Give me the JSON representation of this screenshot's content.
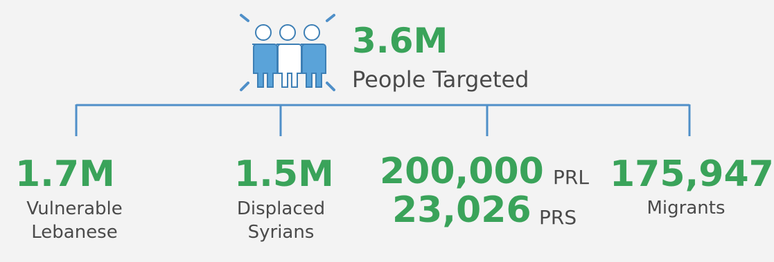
{
  "colors": {
    "accent_green": "#3aa35a",
    "line_blue": "#4f8fc8",
    "icon_blue": "#5aa3d9",
    "text_gray": "#4a4a4a",
    "background": "#f3f3f3"
  },
  "icon": "people-group-icon",
  "top": {
    "value": "3.6M",
    "label": "People Targeted"
  },
  "groups": [
    {
      "value": "1.7M",
      "label_line1": "Vulnerable",
      "label_line2": "Lebanese"
    },
    {
      "value": "1.5M",
      "label_line1": "Displaced",
      "label_line2": "Syrians"
    },
    {
      "value_a": "200,000",
      "suffix_a": "PRL",
      "value_b": "23,026",
      "suffix_b": "PRS"
    },
    {
      "value": "175,947",
      "label": "Migrants"
    }
  ]
}
